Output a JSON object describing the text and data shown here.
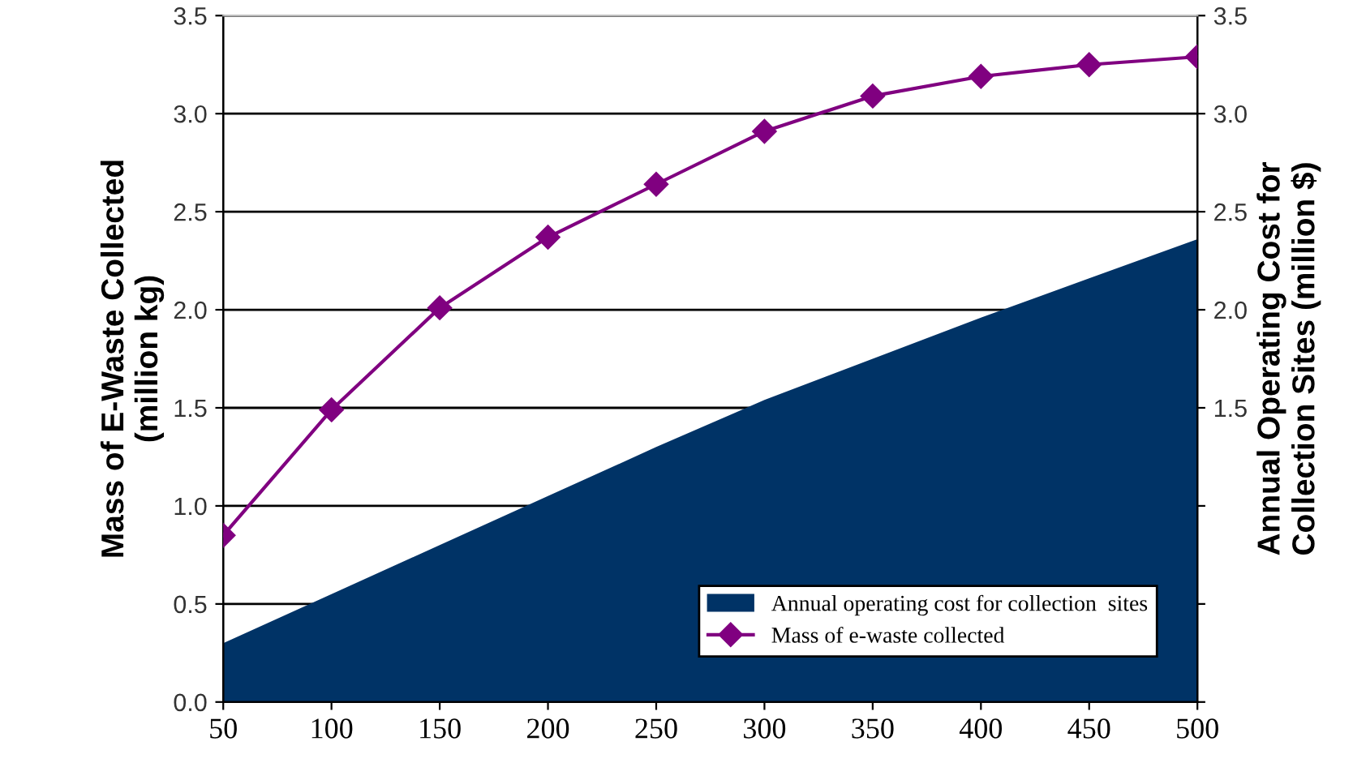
{
  "chart_data": {
    "type": "line",
    "ylabel": "Mass of E-Waste Collected\n(million kg)",
    "y2label": "Annual Operating Cost for\nCollection Sites (million $)",
    "x": [
      50,
      100,
      150,
      200,
      250,
      300,
      350,
      400,
      450,
      500
    ],
    "series": [
      {
        "name": "Annual operating cost for collection  sites",
        "type": "area",
        "axis": "y2",
        "color": "#003366",
        "values": [
          0.3,
          0.55,
          0.8,
          1.05,
          1.3,
          1.54,
          1.75,
          1.96,
          2.16,
          2.36
        ]
      },
      {
        "name": "Mass of e-waste collected",
        "color": "#800080",
        "marker": "diamond",
        "values": [
          0.85,
          1.49,
          2.01,
          2.37,
          2.64,
          2.91,
          3.09,
          3.19,
          3.25,
          3.29
        ]
      }
    ],
    "xlim": [
      50,
      500
    ],
    "xticks": [
      50,
      100,
      150,
      200,
      250,
      300,
      350,
      400,
      450,
      500
    ],
    "ylim": [
      0,
      3.5
    ],
    "yticks": [
      {
        "value": 0,
        "label": "0.0"
      },
      {
        "value": 0.5,
        "label": "0.5"
      },
      {
        "value": 1.0,
        "label": "1.0"
      },
      {
        "value": 1.5,
        "label": "1.5"
      },
      {
        "value": 2.0,
        "label": "2.0"
      },
      {
        "value": 2.5,
        "label": "2.5"
      },
      {
        "value": 3.0,
        "label": "3.0"
      },
      {
        "value": 3.5,
        "label": "3.5"
      }
    ],
    "y2lim": [
      0,
      3.5
    ],
    "y2ticks": [
      {
        "value": 0,
        "label": null
      },
      {
        "value": 0.5,
        "label": null
      },
      {
        "value": 1.0,
        "label": null
      },
      {
        "value": 1.5,
        "label": "1.5"
      },
      {
        "value": 2.0,
        "label": "2.0"
      },
      {
        "value": 2.5,
        "label": "2.5"
      },
      {
        "value": 3.0,
        "label": "3.0"
      },
      {
        "value": 3.5,
        "label": "3.5"
      }
    ],
    "grid": "y",
    "legend": "bottom right"
  }
}
